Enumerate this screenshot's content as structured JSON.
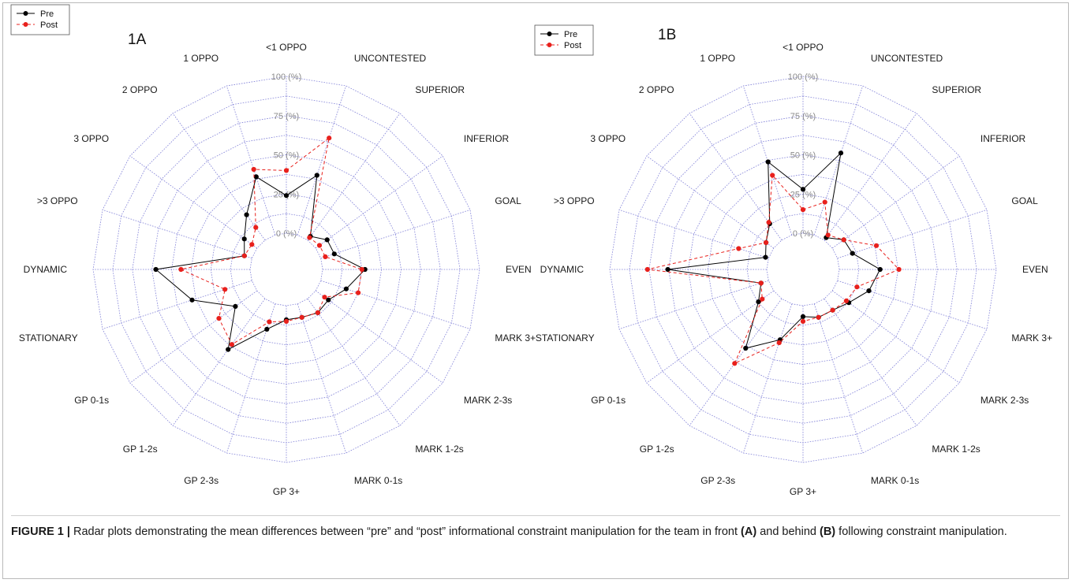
{
  "caption": {
    "label": "FIGURE 1 |",
    "text_1": " Radar plots demonstrating the mean differences between “pre” and “post” informational constraint manipulation for the team in front ",
    "mark_a": "(A)",
    "text_2": " and behind ",
    "mark_b": "(B)",
    "text_3": " following constraint manipulation."
  },
  "chart_data": [
    {
      "type": "radar",
      "panel_label": "1A",
      "legend": {
        "placement": "top-left",
        "entries": [
          "Pre",
          "Post"
        ]
      },
      "axes": [
        "<1 OPPO",
        "UNCONTESTED",
        "SUPERIOR",
        "INFERIOR",
        "GOAL",
        "EVEN",
        "MARK 3+",
        "MARK 2-3s",
        "MARK 1-2s",
        "MARK 0-1s",
        "GP 3+",
        "GP 2-3s",
        "GP 1-2s",
        "GP 0-1s",
        "STATIONARY",
        "DYNAMIC",
        ">3 OPPO",
        "3 OPPO",
        "2 OPPO",
        "1 OPPO"
      ],
      "radial_ticks": [
        "0 (%)",
        "25 (%)",
        "50 (%)",
        "75 (%)",
        "100 (%)"
      ],
      "range": [
        0,
        100
      ],
      "colors": {
        "pre": "#000000",
        "post": "#e8201c",
        "grid": "#6a6ad0"
      },
      "series": [
        {
          "name": "Pre",
          "style": "solid",
          "values": [
            24,
            40,
            3,
            9,
            9,
            27,
            17,
            10,
            11,
            9,
            9,
            17,
            40,
            17,
            40,
            60,
            5,
            10,
            20,
            39
          ]
        },
        {
          "name": "Post",
          "style": "dashed",
          "values": [
            40,
            65,
            2,
            3,
            3,
            25,
            25,
            7,
            11,
            9,
            10,
            12,
            36,
            30,
            18,
            44,
            5,
            4,
            10,
            44
          ]
        }
      ]
    },
    {
      "type": "radar",
      "panel_label": "1B",
      "legend": {
        "placement": "top-left",
        "entries": [
          "Pre",
          "Post"
        ]
      },
      "axes": [
        "<1 OPPO",
        "UNCONTESTED",
        "SUPERIOR",
        "INFERIOR",
        "GOAL",
        "EVEN",
        "MARK 3+",
        "MARK 2-3s",
        "MARK 1-2s",
        "MARK 0-1s",
        "GP 3+",
        "GP 2-3s",
        "GP 1-2s",
        "GP 0-1s",
        "STATIONARY",
        "DYNAMIC",
        ">3 OPPO",
        "3 OPPO",
        "2 OPPO",
        "1 OPPO"
      ],
      "radial_ticks": [
        "0 (%)",
        "25 (%)",
        "50 (%)",
        "75 (%)",
        "100 (%)"
      ],
      "range": [
        0,
        100
      ],
      "colors": {
        "pre": "#000000",
        "post": "#e8201c",
        "grid": "#6a6ad0"
      },
      "series": [
        {
          "name": "Pre",
          "style": "solid",
          "values": [
            28,
            55,
            2,
            9,
            10,
            26,
            21,
            13,
            9,
            9,
            7,
            24,
            39,
            12,
            5,
            63,
            2,
            6,
            13,
            49
          ]
        },
        {
          "name": "Post",
          "style": "dashed",
          "values": [
            15,
            22,
            4,
            9,
            26,
            38,
            13,
            11,
            9,
            9,
            10,
            26,
            51,
            9,
            5,
            76,
            20,
            6,
            14,
            40
          ]
        }
      ]
    }
  ]
}
